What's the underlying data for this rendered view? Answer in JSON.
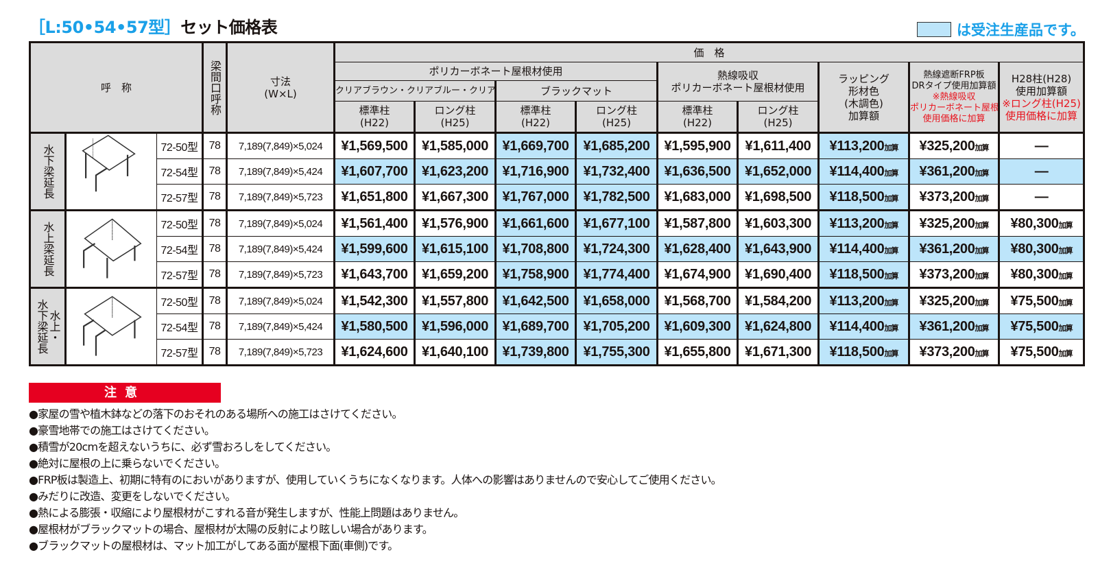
{
  "title": {
    "prefix": "［L:50•54•57型］",
    "main": "セット価格表"
  },
  "legend": {
    "text": "は受注生産品です。",
    "color": "#bde5fa"
  },
  "colors": {
    "accent_blue": "#1aa0e8",
    "made_to_order": "#bde5fa",
    "caution_red": "#e60020",
    "header_gray": "#dcdcdc"
  },
  "header": {
    "name": "呼　称",
    "span_name": "梁間口呼称",
    "dims": "寸法",
    "dims_unit": "(W×L)",
    "price": "価　格",
    "polycarbonate": "ポリカーボネート屋根材使用",
    "clear": "クリアブラウン・クリアブルー・クリアマット",
    "black": "ブラックマット",
    "heat_absorb_1": "熱線吸収",
    "heat_absorb_2": "ポリカーボネート屋根材使用",
    "wrap": [
      "ラッピング",
      "形材色",
      "(木調色)",
      "加算額"
    ],
    "frp": [
      "熱線遮断FRP板",
      "DRタイプ使用加算額"
    ],
    "frp_note": [
      "※熱線吸収",
      "ポリカーボネート屋根材",
      "使用価格に加算"
    ],
    "h28": [
      "H28柱(H28)",
      "使用加算額"
    ],
    "h28_note": [
      "※ロング柱(H25)",
      "使用価格に加算"
    ],
    "posts": [
      {
        "label": "標準柱",
        "sub": "(H22)"
      },
      {
        "label": "ロング柱",
        "sub": "(H25)"
      },
      {
        "label": "標準柱",
        "sub": "(H22)"
      },
      {
        "label": "ロング柱",
        "sub": "(H25)"
      },
      {
        "label": "標準柱",
        "sub": "(H22)"
      },
      {
        "label": "ロング柱",
        "sub": "(H25)"
      }
    ]
  },
  "add_suffix": "加算",
  "groups": [
    {
      "label": "水下梁延長",
      "image": "carport-frame-low-side-beam-extension-icon",
      "rows": [
        {
          "model": "72-50型",
          "span": "78",
          "dims": "7,189(7,849)×5,024",
          "prices": [
            "¥1,569,500",
            "¥1,585,000",
            "¥1,669,700",
            "¥1,685,200",
            "¥1,595,900",
            "¥1,611,400"
          ],
          "wrap": "¥113,200",
          "frp": "¥325,200",
          "h28": "—",
          "made_to_order": [
            false,
            false,
            true,
            true,
            false,
            false,
            true,
            false,
            false
          ]
        },
        {
          "model": "72-54型",
          "span": "78",
          "dims": "7,189(7,849)×5,424",
          "prices": [
            "¥1,607,700",
            "¥1,623,200",
            "¥1,716,900",
            "¥1,732,400",
            "¥1,636,500",
            "¥1,652,000"
          ],
          "wrap": "¥114,400",
          "frp": "¥361,200",
          "h28": "—",
          "made_to_order": [
            true,
            true,
            true,
            true,
            true,
            true,
            true,
            true,
            true
          ]
        },
        {
          "model": "72-57型",
          "span": "78",
          "dims": "7,189(7,849)×5,723",
          "prices": [
            "¥1,651,800",
            "¥1,667,300",
            "¥1,767,000",
            "¥1,782,500",
            "¥1,683,000",
            "¥1,698,500"
          ],
          "wrap": "¥118,500",
          "frp": "¥373,200",
          "h28": "—",
          "made_to_order": [
            false,
            false,
            true,
            true,
            false,
            false,
            true,
            false,
            false
          ]
        }
      ]
    },
    {
      "label": "水上梁延長",
      "image": "carport-frame-high-side-beam-extension-icon",
      "rows": [
        {
          "model": "72-50型",
          "span": "78",
          "dims": "7,189(7,849)×5,024",
          "prices": [
            "¥1,561,400",
            "¥1,576,900",
            "¥1,661,600",
            "¥1,677,100",
            "¥1,587,800",
            "¥1,603,300"
          ],
          "wrap": "¥113,200",
          "frp": "¥325,200",
          "h28": "¥80,300",
          "made_to_order": [
            false,
            false,
            true,
            true,
            false,
            false,
            true,
            false,
            false
          ]
        },
        {
          "model": "72-54型",
          "span": "78",
          "dims": "7,189(7,849)×5,424",
          "prices": [
            "¥1,599,600",
            "¥1,615,100",
            "¥1,708,800",
            "¥1,724,300",
            "¥1,628,400",
            "¥1,643,900"
          ],
          "wrap": "¥114,400",
          "frp": "¥361,200",
          "h28": "¥80,300",
          "made_to_order": [
            true,
            true,
            true,
            true,
            true,
            true,
            true,
            true,
            true
          ]
        },
        {
          "model": "72-57型",
          "span": "78",
          "dims": "7,189(7,849)×5,723",
          "prices": [
            "¥1,643,700",
            "¥1,659,200",
            "¥1,758,900",
            "¥1,774,400",
            "¥1,674,900",
            "¥1,690,400"
          ],
          "wrap": "¥118,500",
          "frp": "¥373,200",
          "h28": "¥80,300",
          "made_to_order": [
            false,
            false,
            true,
            true,
            false,
            false,
            true,
            false,
            false
          ]
        }
      ]
    },
    {
      "label": "水上・\n水下梁延長",
      "image": "carport-frame-both-side-beam-extension-icon",
      "rows": [
        {
          "model": "72-50型",
          "span": "78",
          "dims": "7,189(7,849)×5,024",
          "prices": [
            "¥1,542,300",
            "¥1,557,800",
            "¥1,642,500",
            "¥1,658,000",
            "¥1,568,700",
            "¥1,584,200"
          ],
          "wrap": "¥113,200",
          "frp": "¥325,200",
          "h28": "¥75,500",
          "made_to_order": [
            false,
            false,
            true,
            true,
            false,
            false,
            true,
            false,
            false
          ]
        },
        {
          "model": "72-54型",
          "span": "78",
          "dims": "7,189(7,849)×5,424",
          "prices": [
            "¥1,580,500",
            "¥1,596,000",
            "¥1,689,700",
            "¥1,705,200",
            "¥1,609,300",
            "¥1,624,800"
          ],
          "wrap": "¥114,400",
          "frp": "¥361,200",
          "h28": "¥75,500",
          "made_to_order": [
            true,
            true,
            true,
            true,
            true,
            true,
            true,
            true,
            true
          ]
        },
        {
          "model": "72-57型",
          "span": "78",
          "dims": "7,189(7,849)×5,723",
          "prices": [
            "¥1,624,600",
            "¥1,640,100",
            "¥1,739,800",
            "¥1,755,300",
            "¥1,655,800",
            "¥1,671,300"
          ],
          "wrap": "¥118,500",
          "frp": "¥373,200",
          "h28": "¥75,500",
          "made_to_order": [
            false,
            false,
            true,
            true,
            false,
            false,
            true,
            false,
            false
          ]
        }
      ]
    }
  ],
  "caution": {
    "title": "注意",
    "notes": [
      "家屋の雪や植木鉢などの落下のおそれのある場所への施工はさけてください。",
      "豪雪地帯での施工はさけてください。",
      "積雪が20cmを超えないうちに、必ず雪おろしをしてください。",
      "絶対に屋根の上に乗らないでください。",
      "FRP板は製造上、初期に特有のにおいがありますが、使用していくうちになくなります。人体への影響はありませんので安心してご使用ください。",
      "みだりに改造、変更をしないでください。",
      "熱による膨張・収縮により屋根材がこすれる音が発生しますが、性能上問題はありません。",
      "屋根材がブラックマットの場合、屋根材が太陽の反射により眩しい場合があります。",
      "ブラックマットの屋根材は、マット加工がしてある面が屋根下面(車側)です。"
    ]
  }
}
